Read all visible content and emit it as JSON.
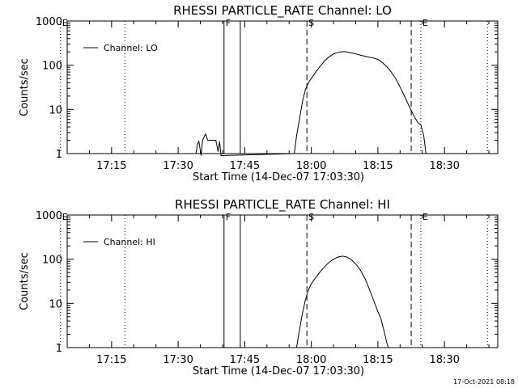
{
  "chart_data": [
    {
      "type": "line",
      "title": "RHESSI PARTICLE_RATE Channel: LO",
      "xlabel": "Start Time (14-Dec-07 17:03:30)",
      "ylabel": "Counts/sec",
      "x_tick_labels": [
        "17:15",
        "17:30",
        "17:45",
        "18:00",
        "18:15",
        "18:30"
      ],
      "y_tick_labels": [
        "1",
        "10",
        "100",
        "1000"
      ],
      "y_scale": "log",
      "ylim": [
        1,
        1000
      ],
      "xlim": [
        "17:05:00",
        "18:42:00"
      ],
      "grid": false,
      "legend_position": "top-left",
      "series": [
        {
          "name": "Channel: LO",
          "points": [
            [
              "17:34:00",
              1
            ],
            [
              "17:34:20",
              1.6
            ],
            [
              "17:34:40",
              1.9
            ],
            [
              "17:35:10",
              0.9
            ],
            [
              "17:35:30",
              2.0
            ],
            [
              "17:36:10",
              2.8
            ],
            [
              "17:36:40",
              2.0
            ],
            [
              "17:38:30",
              2.0
            ],
            [
              "17:39:00",
              1.1
            ],
            [
              "17:39:20",
              1.9
            ],
            [
              "17:39:40",
              0.9
            ],
            [
              "17:56:10",
              1.0
            ],
            [
              "17:56:40",
              2.5
            ],
            [
              "17:57:20",
              6
            ],
            [
              "17:58:00",
              15
            ],
            [
              "17:58:40",
              28
            ],
            [
              "17:59:20",
              40
            ],
            [
              "18:00:00",
              50
            ],
            [
              "18:01:00",
              70
            ],
            [
              "18:02:00",
              95
            ],
            [
              "18:03:00",
              125
            ],
            [
              "18:04:00",
              155
            ],
            [
              "18:05:00",
              180
            ],
            [
              "18:06:00",
              195
            ],
            [
              "18:07:00",
              203
            ],
            [
              "18:08:00",
              200
            ],
            [
              "18:09:00",
              190
            ],
            [
              "18:10:00",
              180
            ],
            [
              "18:11:00",
              170
            ],
            [
              "18:12:00",
              160
            ],
            [
              "18:13:00",
              152
            ],
            [
              "18:14:00",
              145
            ],
            [
              "18:15:00",
              135
            ],
            [
              "18:16:00",
              115
            ],
            [
              "18:17:00",
              92
            ],
            [
              "18:18:00",
              70
            ],
            [
              "18:19:00",
              50
            ],
            [
              "18:20:00",
              32
            ],
            [
              "18:21:00",
              20
            ],
            [
              "18:22:00",
              12
            ],
            [
              "18:23:00",
              7.5
            ],
            [
              "18:24:00",
              5
            ],
            [
              "18:24:40",
              4.5
            ],
            [
              "18:25:20",
              2.5
            ],
            [
              "18:25:50",
              1.0
            ]
          ]
        }
      ],
      "markers": [
        {
          "label": "E",
          "time": "17:03:30",
          "style": "dotted"
        },
        {
          "label": "",
          "time": "17:18:00",
          "style": "dotted"
        },
        {
          "label": "F",
          "time": "17:40:20",
          "style": "solid"
        },
        {
          "label": "",
          "time": "17:44:00",
          "style": "solid"
        },
        {
          "label": "S",
          "time": "17:59:00",
          "style": "dashed"
        },
        {
          "label": "",
          "time": "18:22:30",
          "style": "dashed"
        },
        {
          "label": "E",
          "time": "18:24:40",
          "style": "dotted"
        },
        {
          "label": "",
          "time": "18:39:40",
          "style": "dotted"
        }
      ]
    },
    {
      "type": "line",
      "title": "RHESSI PARTICLE_RATE Channel: HI",
      "xlabel": "Start Time (14-Dec-07 17:03:30)",
      "ylabel": "Counts/sec",
      "x_tick_labels": [
        "17:15",
        "17:30",
        "17:45",
        "18:00",
        "18:15",
        "18:30"
      ],
      "y_tick_labels": [
        "1",
        "10",
        "100",
        "1000"
      ],
      "y_scale": "log",
      "ylim": [
        1,
        1000
      ],
      "xlim": [
        "17:05:00",
        "18:42:00"
      ],
      "grid": false,
      "legend_position": "top-left",
      "series": [
        {
          "name": "Channel: HI",
          "points": [
            [
              "17:56:40",
              1.0
            ],
            [
              "17:57:20",
              2.5
            ],
            [
              "17:58:00",
              6
            ],
            [
              "17:58:40",
              12
            ],
            [
              "17:59:20",
              20
            ],
            [
              "18:00:00",
              28
            ],
            [
              "18:01:00",
              38
            ],
            [
              "18:02:00",
              52
            ],
            [
              "18:03:00",
              68
            ],
            [
              "18:04:00",
              85
            ],
            [
              "18:05:00",
              100
            ],
            [
              "18:06:00",
              112
            ],
            [
              "18:07:00",
              117
            ],
            [
              "18:08:00",
              112
            ],
            [
              "18:09:00",
              98
            ],
            [
              "18:10:00",
              78
            ],
            [
              "18:11:00",
              58
            ],
            [
              "18:12:00",
              38
            ],
            [
              "18:13:00",
              22
            ],
            [
              "18:14:00",
              12
            ],
            [
              "18:15:00",
              6.5
            ],
            [
              "18:15:40",
              4.5
            ],
            [
              "18:16:20",
              2.5
            ],
            [
              "18:17:00",
              1.3
            ],
            [
              "18:17:20",
              1.0
            ]
          ]
        }
      ],
      "markers": [
        {
          "label": "E",
          "time": "17:03:30",
          "style": "dotted"
        },
        {
          "label": "",
          "time": "17:18:00",
          "style": "dotted"
        },
        {
          "label": "F",
          "time": "17:40:20",
          "style": "solid"
        },
        {
          "label": "",
          "time": "17:44:00",
          "style": "solid"
        },
        {
          "label": "S",
          "time": "17:59:00",
          "style": "dashed"
        },
        {
          "label": "",
          "time": "18:22:30",
          "style": "dashed"
        },
        {
          "label": "E",
          "time": "18:24:40",
          "style": "dotted"
        },
        {
          "label": "",
          "time": "18:39:40",
          "style": "dotted"
        }
      ]
    }
  ],
  "footer": {
    "timestamp": "17-Oct-2021 08:18"
  },
  "colors": {
    "line": "#000000",
    "background": "#ffffff"
  }
}
